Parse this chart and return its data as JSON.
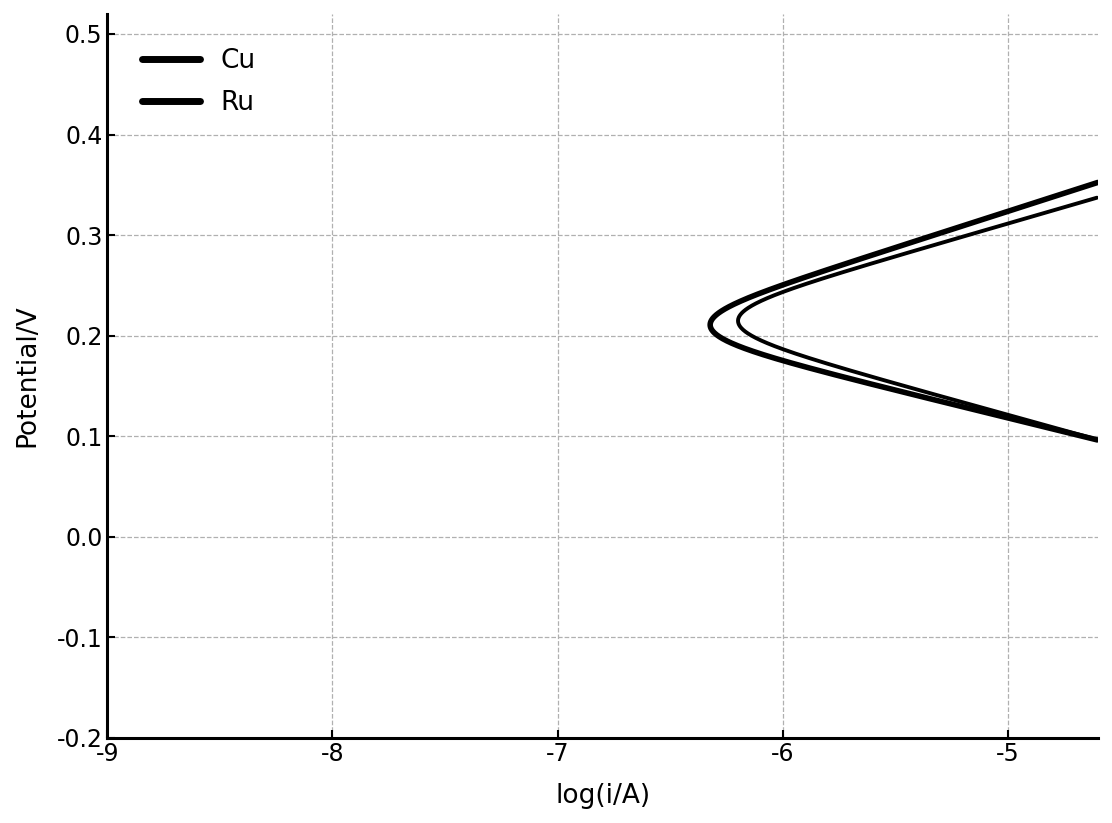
{
  "title": "",
  "xlabel": "log(i/A)",
  "ylabel": "Potential/V",
  "xlim": [
    -9,
    -4.6
  ],
  "ylim": [
    -0.2,
    0.52
  ],
  "yticks": [
    -0.2,
    -0.1,
    0.0,
    0.1,
    0.2,
    0.3,
    0.4,
    0.5
  ],
  "xticks": [
    -9,
    -8,
    -7,
    -6,
    -5
  ],
  "grid_color": "#b0b0b0",
  "background_color": "#ffffff",
  "line_color": "#000000",
  "legend_labels": [
    "Cu",
    "Ru"
  ],
  "Cu_E_corr": 0.207,
  "Cu_log_i_corr": -6.62,
  "Cu_ba": 0.072,
  "Cu_bc": 0.055,
  "Ru_E_corr": 0.214,
  "Ru_log_i_corr": -6.5,
  "Ru_ba": 0.065,
  "Ru_bc": 0.062,
  "Cu_lw": 4.0,
  "Ru_lw": 2.8
}
